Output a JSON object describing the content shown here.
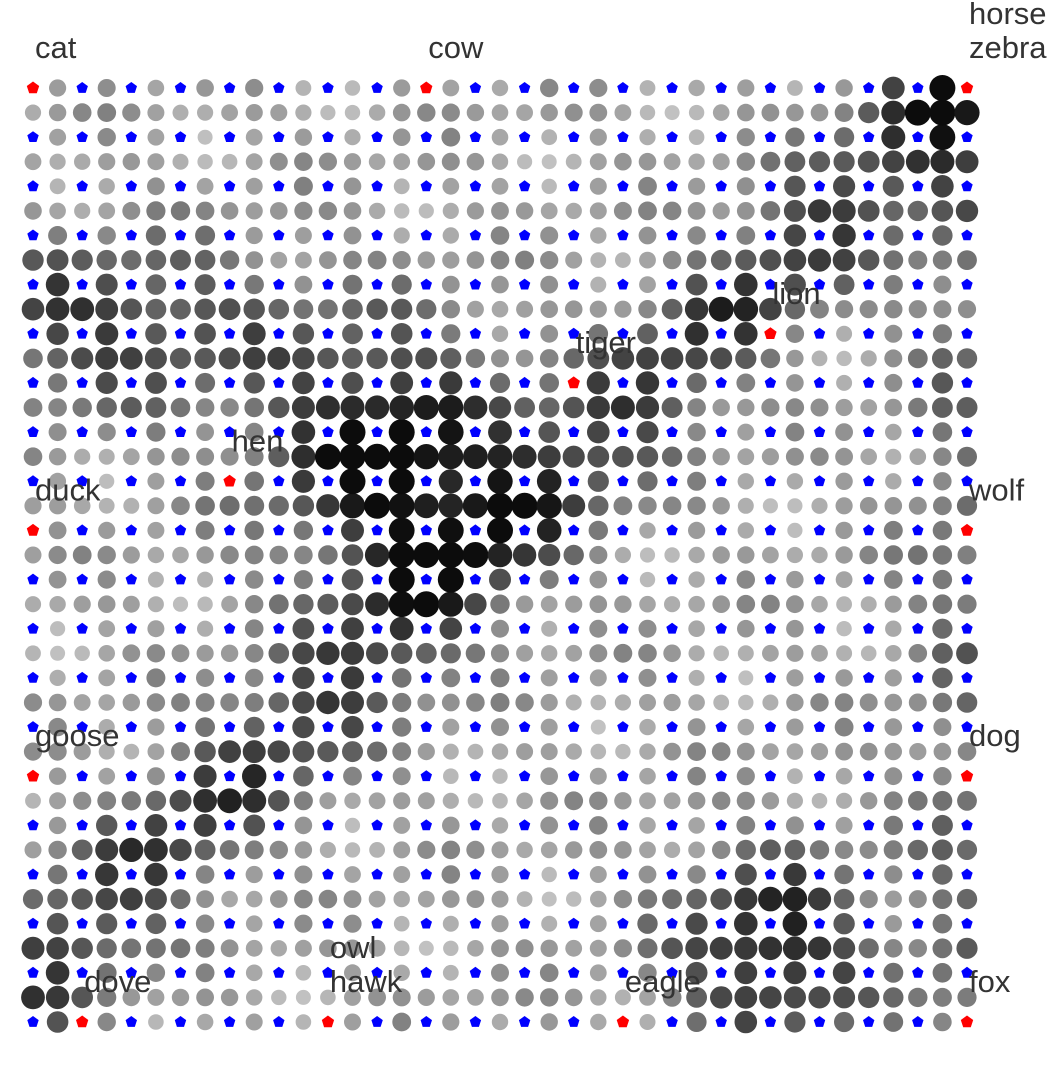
{
  "chart_data": {
    "type": "scatter",
    "title": "",
    "xlabel": "",
    "ylabel": "",
    "grid": false,
    "legend": "none",
    "colors": {
      "node_marker": "#ff0000",
      "lattice_marker": "#0000ff",
      "cell_dark": "#000000",
      "cell_light": "#f2f2f2"
    },
    "cell_shading": "grey level from nearness to the winning neurons",
    "x_range": [
      0,
      19
    ],
    "y_range": [
      0,
      19
    ],
    "nodes": [
      {
        "name": "cat",
        "x": 0,
        "y": 19
      },
      {
        "name": "cow",
        "x": 8,
        "y": 19
      },
      {
        "name": "horse",
        "x": 19,
        "y": 19
      },
      {
        "name": "zebra",
        "x": 19,
        "y": 19
      },
      {
        "name": "lion",
        "x": 15,
        "y": 14
      },
      {
        "name": "tiger",
        "x": 11,
        "y": 13
      },
      {
        "name": "hen",
        "x": 4,
        "y": 11
      },
      {
        "name": "duck",
        "x": 0,
        "y": 10
      },
      {
        "name": "wolf",
        "x": 19,
        "y": 10
      },
      {
        "name": "goose",
        "x": 0,
        "y": 5
      },
      {
        "name": "dog",
        "x": 19,
        "y": 5
      },
      {
        "name": "dove",
        "x": 1,
        "y": 0
      },
      {
        "name": "owl",
        "x": 6,
        "y": 0
      },
      {
        "name": "hawk",
        "x": 6,
        "y": 0
      },
      {
        "name": "eagle",
        "x": 12,
        "y": 0
      },
      {
        "name": "fox",
        "x": 19,
        "y": 0
      }
    ]
  }
}
